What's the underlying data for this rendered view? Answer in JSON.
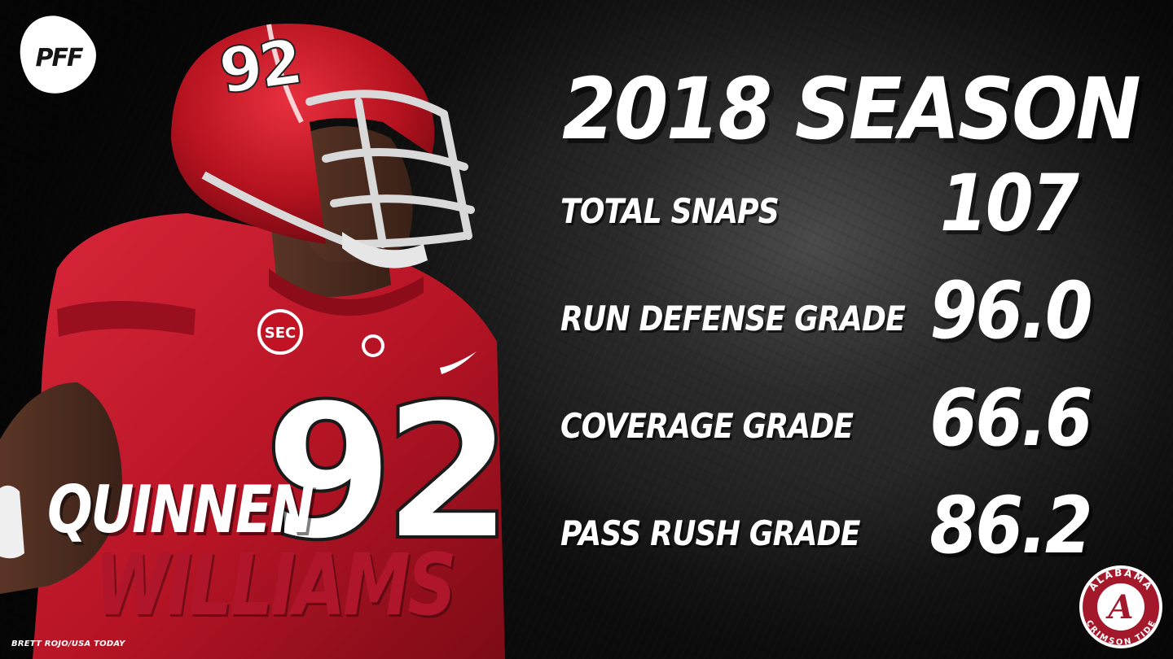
{
  "logo": {
    "text": "PFF"
  },
  "headline": {
    "title": "2018 SEASON"
  },
  "stats": [
    {
      "label": "TOTAL SNAPS",
      "value": "107"
    },
    {
      "label": "RUN DEFENSE GRADE",
      "value": "96.0"
    },
    {
      "label": "COVERAGE GRADE",
      "value": "66.6"
    },
    {
      "label": "PASS RUSH GRADE",
      "value": "86.2"
    }
  ],
  "player": {
    "first_name": "QUINNEN",
    "last_name": "WILLIAMS",
    "helmet_number": "92",
    "jersey_number": "92",
    "patch_text": "SEC",
    "photo_credit": "BRETT ROJO/USA TODAY"
  },
  "seal": {
    "top_text": "ALABAMA",
    "bottom_text": "CRIMSON TIDE",
    "monogram": "A"
  },
  "colors": {
    "crimson": "#b0162b",
    "jersey": "#c8102e",
    "text": "#ffffff",
    "background": "#111111"
  },
  "icons": [
    "pff-football-logo",
    "alabama-seal-icon",
    "sec-patch-icon"
  ]
}
